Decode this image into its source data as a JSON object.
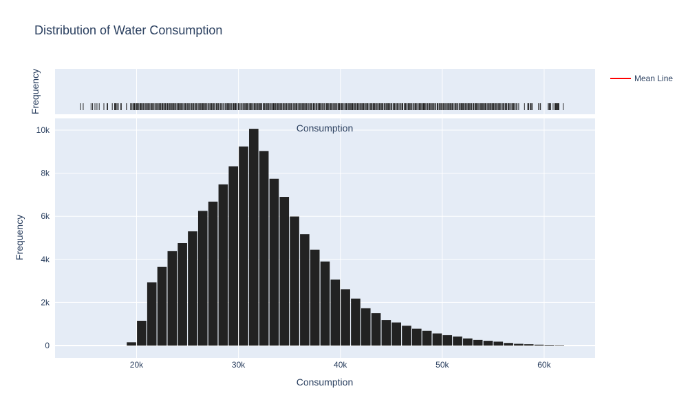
{
  "chart_data": {
    "type": "bar",
    "title": "Distribution of Water Consumption",
    "subplot_title": "Consumption",
    "xlabel": "Consumption",
    "ylabel": "Frequency",
    "rug_ylabel": "Frequency",
    "xlim": [
      12000,
      65000
    ],
    "ylim": [
      -500,
      10600
    ],
    "x_ticks": [
      20000,
      30000,
      40000,
      50000,
      60000
    ],
    "x_tick_labels": [
      "20k",
      "30k",
      "40k",
      "50k",
      "60k"
    ],
    "y_ticks": [
      0,
      2000,
      4000,
      6000,
      8000,
      10000
    ],
    "y_tick_labels": [
      "0",
      "2k",
      "4k",
      "6k",
      "8k",
      "10k"
    ],
    "bin_width": 1000,
    "bin_centers": [
      19500,
      20500,
      21500,
      22500,
      23500,
      24500,
      25500,
      26500,
      27500,
      28500,
      29500,
      30500,
      31500,
      32500,
      33500,
      34500,
      35500,
      36500,
      37500,
      38500,
      39500,
      40500,
      41500,
      42500,
      43500,
      44500,
      45500,
      46500,
      47500,
      48500,
      49500,
      50500,
      51500,
      52500,
      53500,
      54500,
      55500,
      56500,
      57500,
      58500,
      59500,
      60500,
      61500
    ],
    "values": [
      150,
      1150,
      2930,
      3650,
      4380,
      4760,
      5300,
      6250,
      6680,
      7480,
      8320,
      9240,
      10060,
      9030,
      7740,
      6900,
      5990,
      5170,
      4450,
      3900,
      3060,
      2610,
      2180,
      1730,
      1500,
      1180,
      1070,
      920,
      780,
      680,
      560,
      480,
      420,
      330,
      260,
      220,
      180,
      120,
      80,
      60,
      40,
      30,
      20
    ],
    "rug_range": [
      14500,
      62000
    ],
    "rug_dense_range": [
      19400,
      57300
    ],
    "legend": [
      {
        "name": "Mean Line",
        "color": "#ff0000"
      }
    ],
    "legend_position": "top-right",
    "grid": true,
    "colors": {
      "bars": "#222222",
      "plot_bg": "#e5ecf6",
      "grid": "#ffffff",
      "text": "#2a3f5f",
      "mean_line": "#ff0000"
    }
  }
}
